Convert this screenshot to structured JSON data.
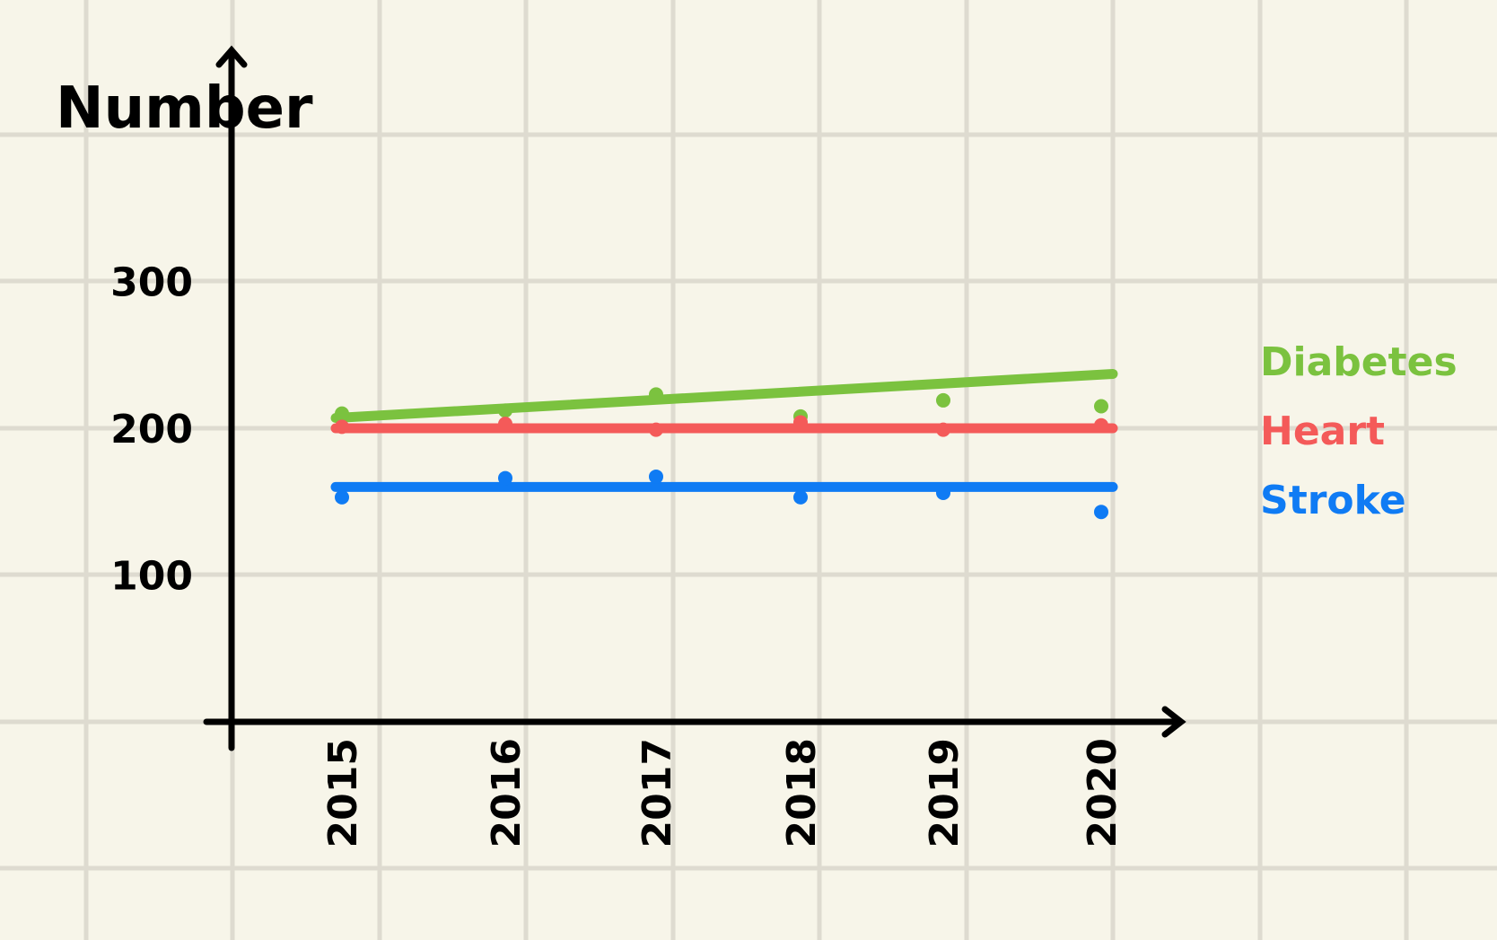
{
  "chart_data": {
    "type": "scatter",
    "title": "",
    "xlabel": "",
    "ylabel": "Number",
    "categories": [
      "2015",
      "2016",
      "2017",
      "2018",
      "2019",
      "2020"
    ],
    "y_ticks": [
      "100",
      "200",
      "300"
    ],
    "ylim": [
      0,
      400
    ],
    "grid": true,
    "legend_position": "right",
    "series": [
      {
        "name": "Diabetes",
        "color": "#7bc23f",
        "values": [
          210,
          212,
          223,
          208,
          219,
          215
        ],
        "trendline": [
          207,
          237
        ]
      },
      {
        "name": "Heart",
        "color": "#f45a59",
        "values": [
          201,
          203,
          199,
          204,
          199,
          202
        ],
        "trendline": [
          200,
          200
        ]
      },
      {
        "name": "Stroke",
        "color": "#0f7bf4",
        "values": [
          153,
          166,
          167,
          153,
          156,
          143
        ],
        "trendline": [
          160,
          160
        ]
      }
    ]
  }
}
